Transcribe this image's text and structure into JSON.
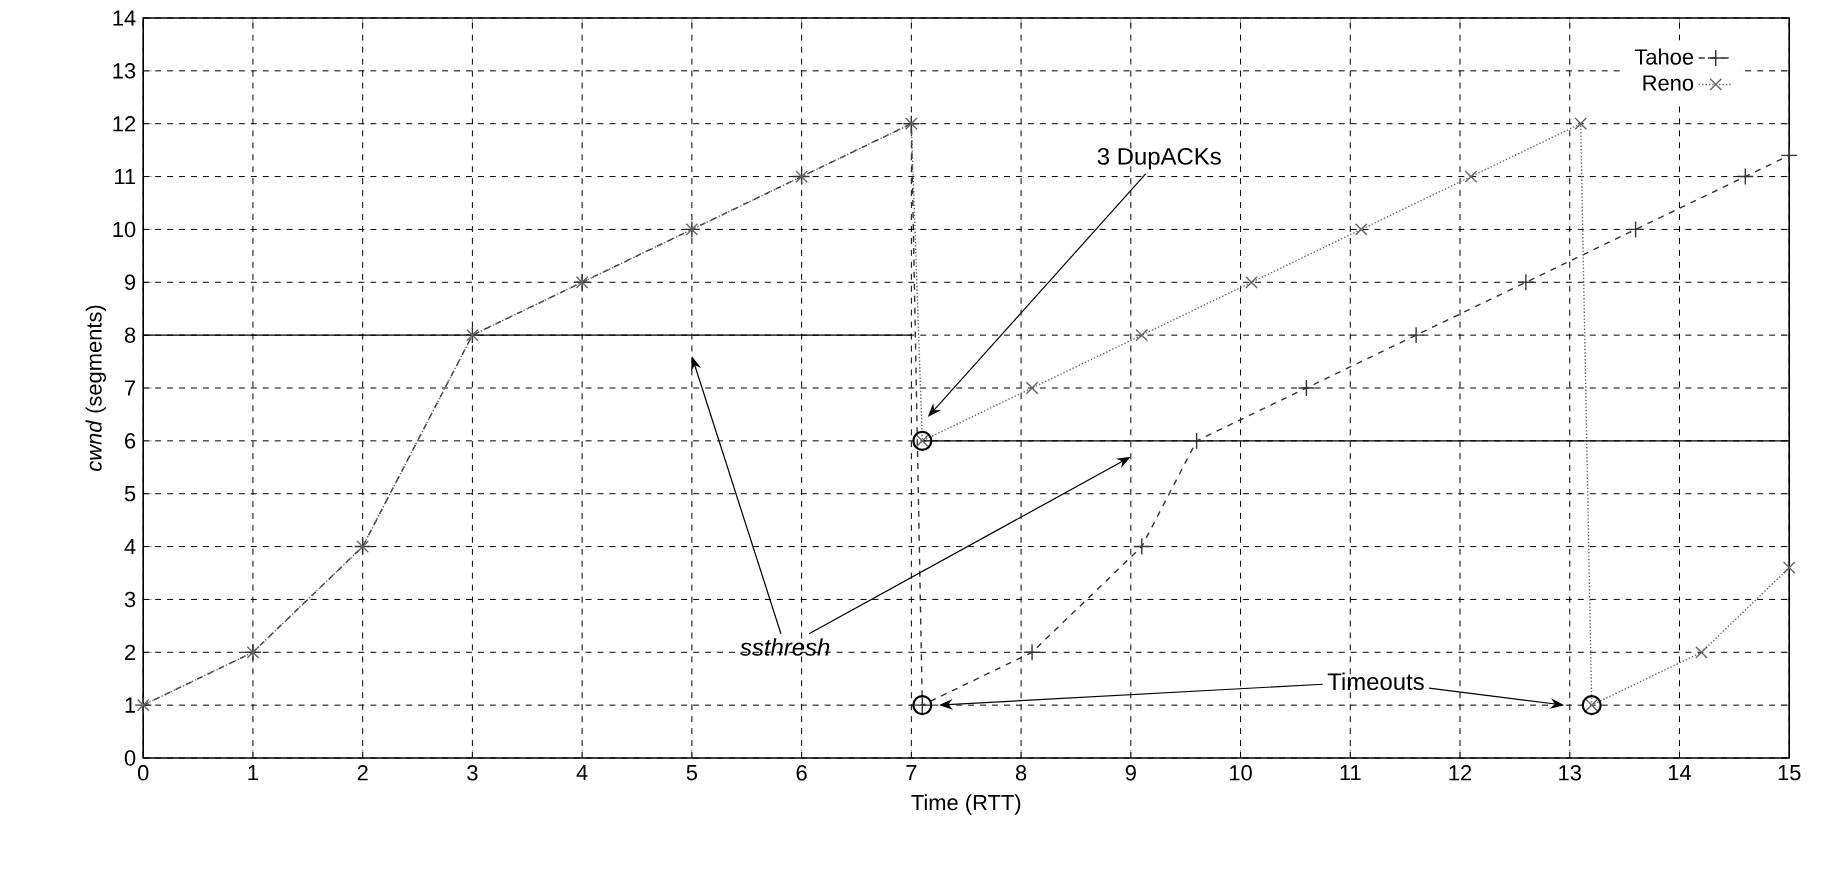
{
  "chart_data": {
    "type": "line",
    "xlabel": "Time (RTT)",
    "ylabel": "*cwnd* (segments)",
    "xlim": [
      0,
      15
    ],
    "ylim": [
      0,
      14
    ],
    "xticks": [
      0,
      1,
      2,
      3,
      4,
      5,
      6,
      7,
      8,
      9,
      10,
      11,
      12,
      13,
      14,
      15
    ],
    "yticks": [
      0,
      1,
      2,
      3,
      4,
      5,
      6,
      7,
      8,
      9,
      10,
      11,
      12,
      13,
      14
    ],
    "grid": true,
    "legend": "top right",
    "series": [
      {
        "name": "Tahoe",
        "color": "#333333",
        "line_style": "dashed",
        "marker": "plus",
        "x": [
          0,
          1,
          2,
          3,
          4,
          5,
          6,
          7,
          7.1,
          8.1,
          9.1,
          9.6,
          10.6,
          11.6,
          12.6,
          13.6,
          14.6,
          15
        ],
        "values": [
          1,
          2,
          4,
          8,
          9,
          10,
          11,
          12,
          1,
          2,
          4,
          6,
          7,
          8,
          9,
          10,
          11,
          11.4
        ]
      },
      {
        "name": "Reno",
        "color": "#666666",
        "line_style": "dotted",
        "marker": "cross",
        "x": [
          0,
          1,
          2,
          3,
          4,
          5,
          6,
          7,
          7.1,
          8.1,
          9.1,
          10.1,
          11.1,
          12.1,
          13.1,
          13.2,
          14.2,
          15
        ],
        "values": [
          1,
          2,
          4,
          8,
          9,
          10,
          11,
          12,
          6,
          7,
          8,
          9,
          10,
          11,
          12,
          1,
          2,
          3.6
        ]
      },
      {
        "color": "#000000",
        "type": "line",
        "line_style": "solid",
        "marker": "none",
        "x": [
          0,
          7
        ],
        "values": [
          8,
          8
        ]
      },
      {
        "color": "#000000",
        "type": "line",
        "line_style": "solid",
        "marker": "none",
        "x": [
          7.1,
          15
        ],
        "values": [
          6,
          6
        ]
      },
      {
        "color": "#000000",
        "type": "scatter",
        "marker": "circle",
        "x": [
          7.1,
          7.1,
          13.2
        ],
        "values": [
          6,
          1,
          1
        ]
      }
    ],
    "annotations": [
      "3 DupACKs",
      "ssthresh",
      "Timeouts"
    ]
  }
}
